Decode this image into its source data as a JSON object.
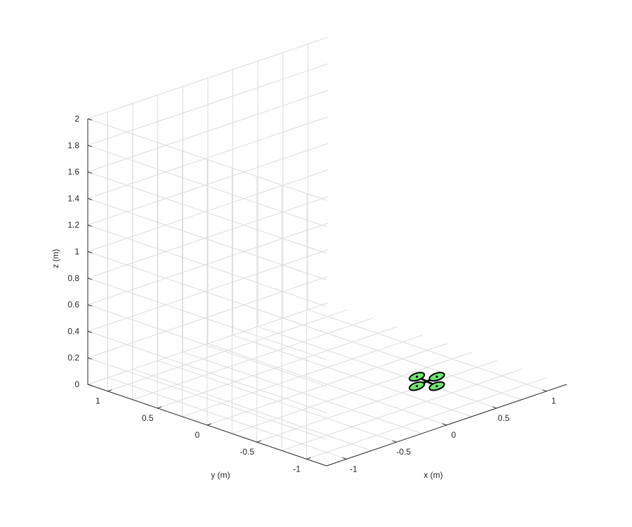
{
  "chart_data": {
    "type": "scatter",
    "projection": "3d",
    "title": "",
    "xlabel": "x (m)",
    "ylabel": "y (m)",
    "zlabel": "z (m)",
    "xlim": [
      -1.2,
      1.2
    ],
    "ylim": [
      -1.2,
      1.2
    ],
    "zlim": [
      0,
      2
    ],
    "xticks": [
      -1,
      -0.5,
      0,
      0.5,
      1
    ],
    "yticks": [
      -1,
      -0.5,
      0,
      0.5,
      1
    ],
    "zticks": [
      0,
      0.2,
      0.4,
      0.6,
      0.8,
      1,
      1.2,
      1.4,
      1.6,
      1.8,
      2
    ],
    "xtick_labels": [
      "-1",
      "-0.5",
      "0",
      "0.5",
      "1"
    ],
    "ytick_labels": [
      "-1",
      "-0.5",
      "0",
      "0.5",
      "1"
    ],
    "ztick_labels": [
      "0",
      "0.2",
      "0.4",
      "0.6",
      "0.8",
      "1",
      "1.2",
      "1.4",
      "1.6",
      "1.8",
      "2"
    ],
    "grid": true,
    "object": {
      "name": "quadrotor",
      "center": [
        0.25,
        -0.75,
        0.15
      ],
      "rotors": [
        {
          "x": 0.35,
          "y": -0.75,
          "z": 0.16
        },
        {
          "x": 0.25,
          "y": -0.65,
          "z": 0.16
        },
        {
          "x": 0.15,
          "y": -0.75,
          "z": 0.14
        },
        {
          "x": 0.25,
          "y": -0.85,
          "z": 0.14
        }
      ],
      "rotor_radius": 0.07,
      "rotor_color": "#6ee86e",
      "edge_color": "#000000"
    },
    "colors": {
      "axis": "#262626",
      "grid": "#dcdcdc",
      "background": "#ffffff"
    }
  }
}
